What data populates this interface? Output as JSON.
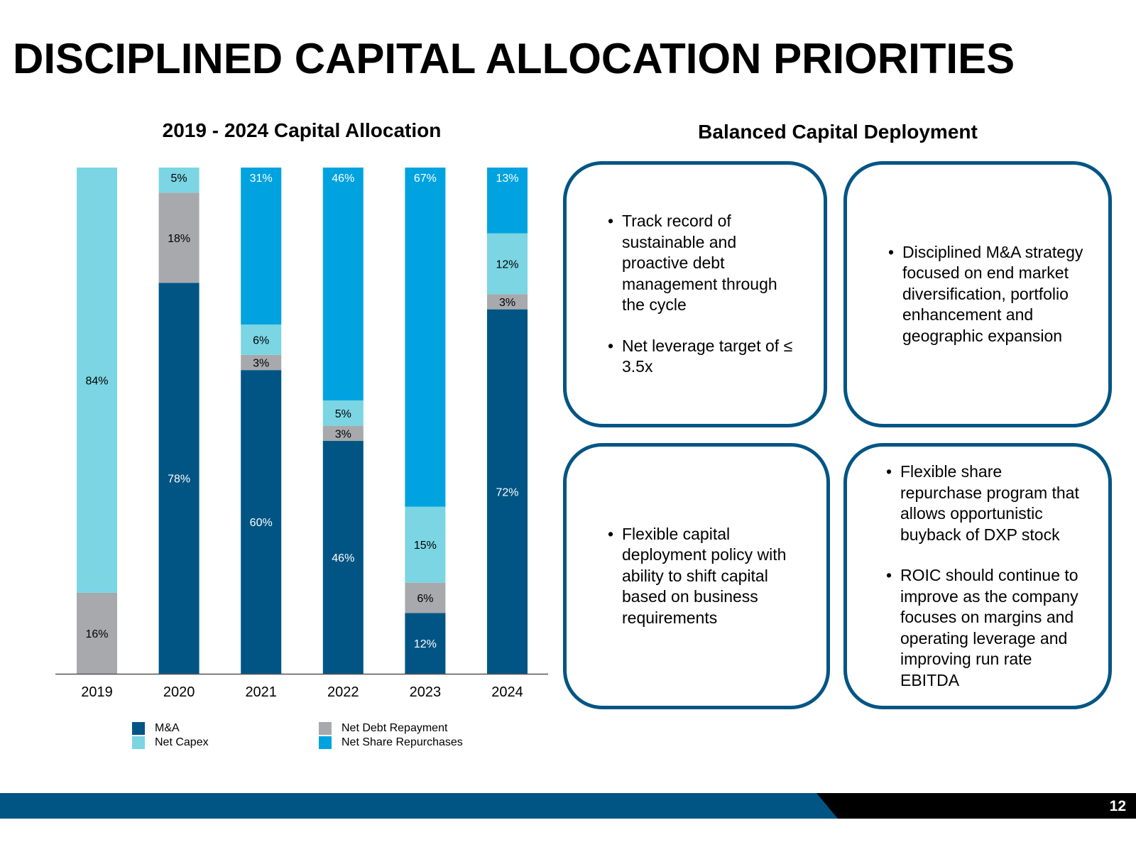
{
  "title": "DISCIPLINED CAPITAL ALLOCATION PRIORITIES",
  "panel_title": "Balanced Capital Deployment",
  "page_number": "12",
  "colors": {
    "ma": "#005584",
    "net_debt": "#A7A9AC",
    "net_capex": "#7BD5E3",
    "share_repurchases": "#00A3E0",
    "box_border": "#005584",
    "footer_blue": "#005584"
  },
  "chart_data": {
    "type": "bar",
    "stacked": true,
    "title": "2019 - 2024 Capital Allocation",
    "categories": [
      "2019",
      "2020",
      "2021",
      "2022",
      "2023",
      "2024"
    ],
    "ylim": [
      0,
      100
    ],
    "legend_position": "bottom",
    "series": [
      {
        "name": "M&A",
        "key": "ma",
        "values": [
          0,
          78,
          60,
          46,
          12,
          72
        ],
        "labels": [
          "",
          "78%",
          "60%",
          "46%",
          "12%",
          "72%"
        ]
      },
      {
        "name": "Net Debt Repayment",
        "key": "net_debt",
        "values": [
          16,
          18,
          3,
          3,
          6,
          3
        ],
        "labels": [
          "16%",
          "18%",
          "3%",
          "3%",
          "6%",
          "3%"
        ]
      },
      {
        "name": "Net Capex",
        "key": "net_capex",
        "values": [
          84,
          5,
          6,
          5,
          15,
          12
        ],
        "labels": [
          "84%",
          "5%",
          "6%",
          "5%",
          "15%",
          "12%"
        ]
      },
      {
        "name": "Net Share Repurchases",
        "key": "share_repurchases",
        "values": [
          0,
          0,
          31,
          46,
          67,
          13
        ],
        "labels": [
          "",
          "",
          "31%",
          "46%",
          "67%",
          "13%"
        ]
      }
    ]
  },
  "legend": [
    {
      "label": "M&A",
      "key": "ma"
    },
    {
      "label": "Net Capex",
      "key": "net_capex"
    },
    {
      "label": "Net Debt Repayment",
      "key": "net_debt"
    },
    {
      "label": "Net Share Repurchases",
      "key": "share_repurchases"
    }
  ],
  "boxes": [
    {
      "bullets": [
        "Track record of sustainable and proactive debt management through the cycle",
        "Net leverage target of ≤ 3.5x"
      ]
    },
    {
      "bullets": [
        "Disciplined M&A strategy focused on end market diversification, portfolio enhancement and geographic expansion"
      ]
    },
    {
      "bullets": [
        "Flexible capital deployment policy with ability to shift capital based on business requirements"
      ]
    },
    {
      "bullets": [
        "Flexible share repurchase program that allows opportunistic buyback of DXP stock",
        "ROIC should continue to improve as the company focuses on margins and operating leverage and improving run rate EBITDA"
      ]
    }
  ]
}
